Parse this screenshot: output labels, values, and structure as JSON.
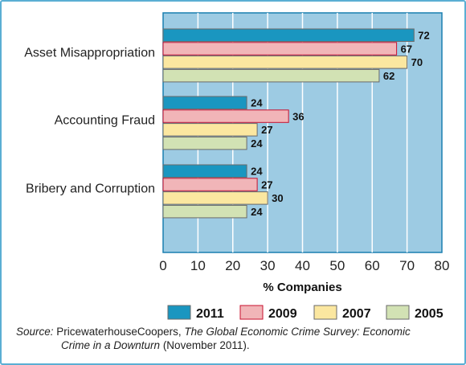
{
  "chart_data": {
    "type": "bar",
    "orientation": "horizontal",
    "categories": [
      "Asset Misappropriation",
      "Accounting Fraud",
      "Bribery and Corruption"
    ],
    "series": [
      {
        "name": "2011",
        "values": [
          72,
          24,
          24
        ],
        "color": "#1a96c0"
      },
      {
        "name": "2009",
        "values": [
          67,
          36,
          27
        ],
        "color": "#f1b5b8"
      },
      {
        "name": "2007",
        "values": [
          70,
          27,
          30
        ],
        "color": "#fbe7a0"
      },
      {
        "name": "2005",
        "values": [
          62,
          24,
          24
        ],
        "color": "#d2e2b4"
      }
    ],
    "xlabel": "% Companies",
    "xlim": [
      0,
      80
    ],
    "xticks": [
      0,
      10,
      20,
      30,
      40,
      50,
      60,
      70,
      80
    ],
    "grid": true,
    "legend_position": "bottom",
    "plot_background": "#9dcbe3",
    "highlight_border": "#c8102e"
  },
  "source": {
    "prefix": "Source:",
    "publisher": "PricewaterhouseCoopers,",
    "title_part1": "The Global Economic Crime Survey: Economic",
    "title_part2": "Crime in a Downturn",
    "date": "(November 2011)."
  }
}
